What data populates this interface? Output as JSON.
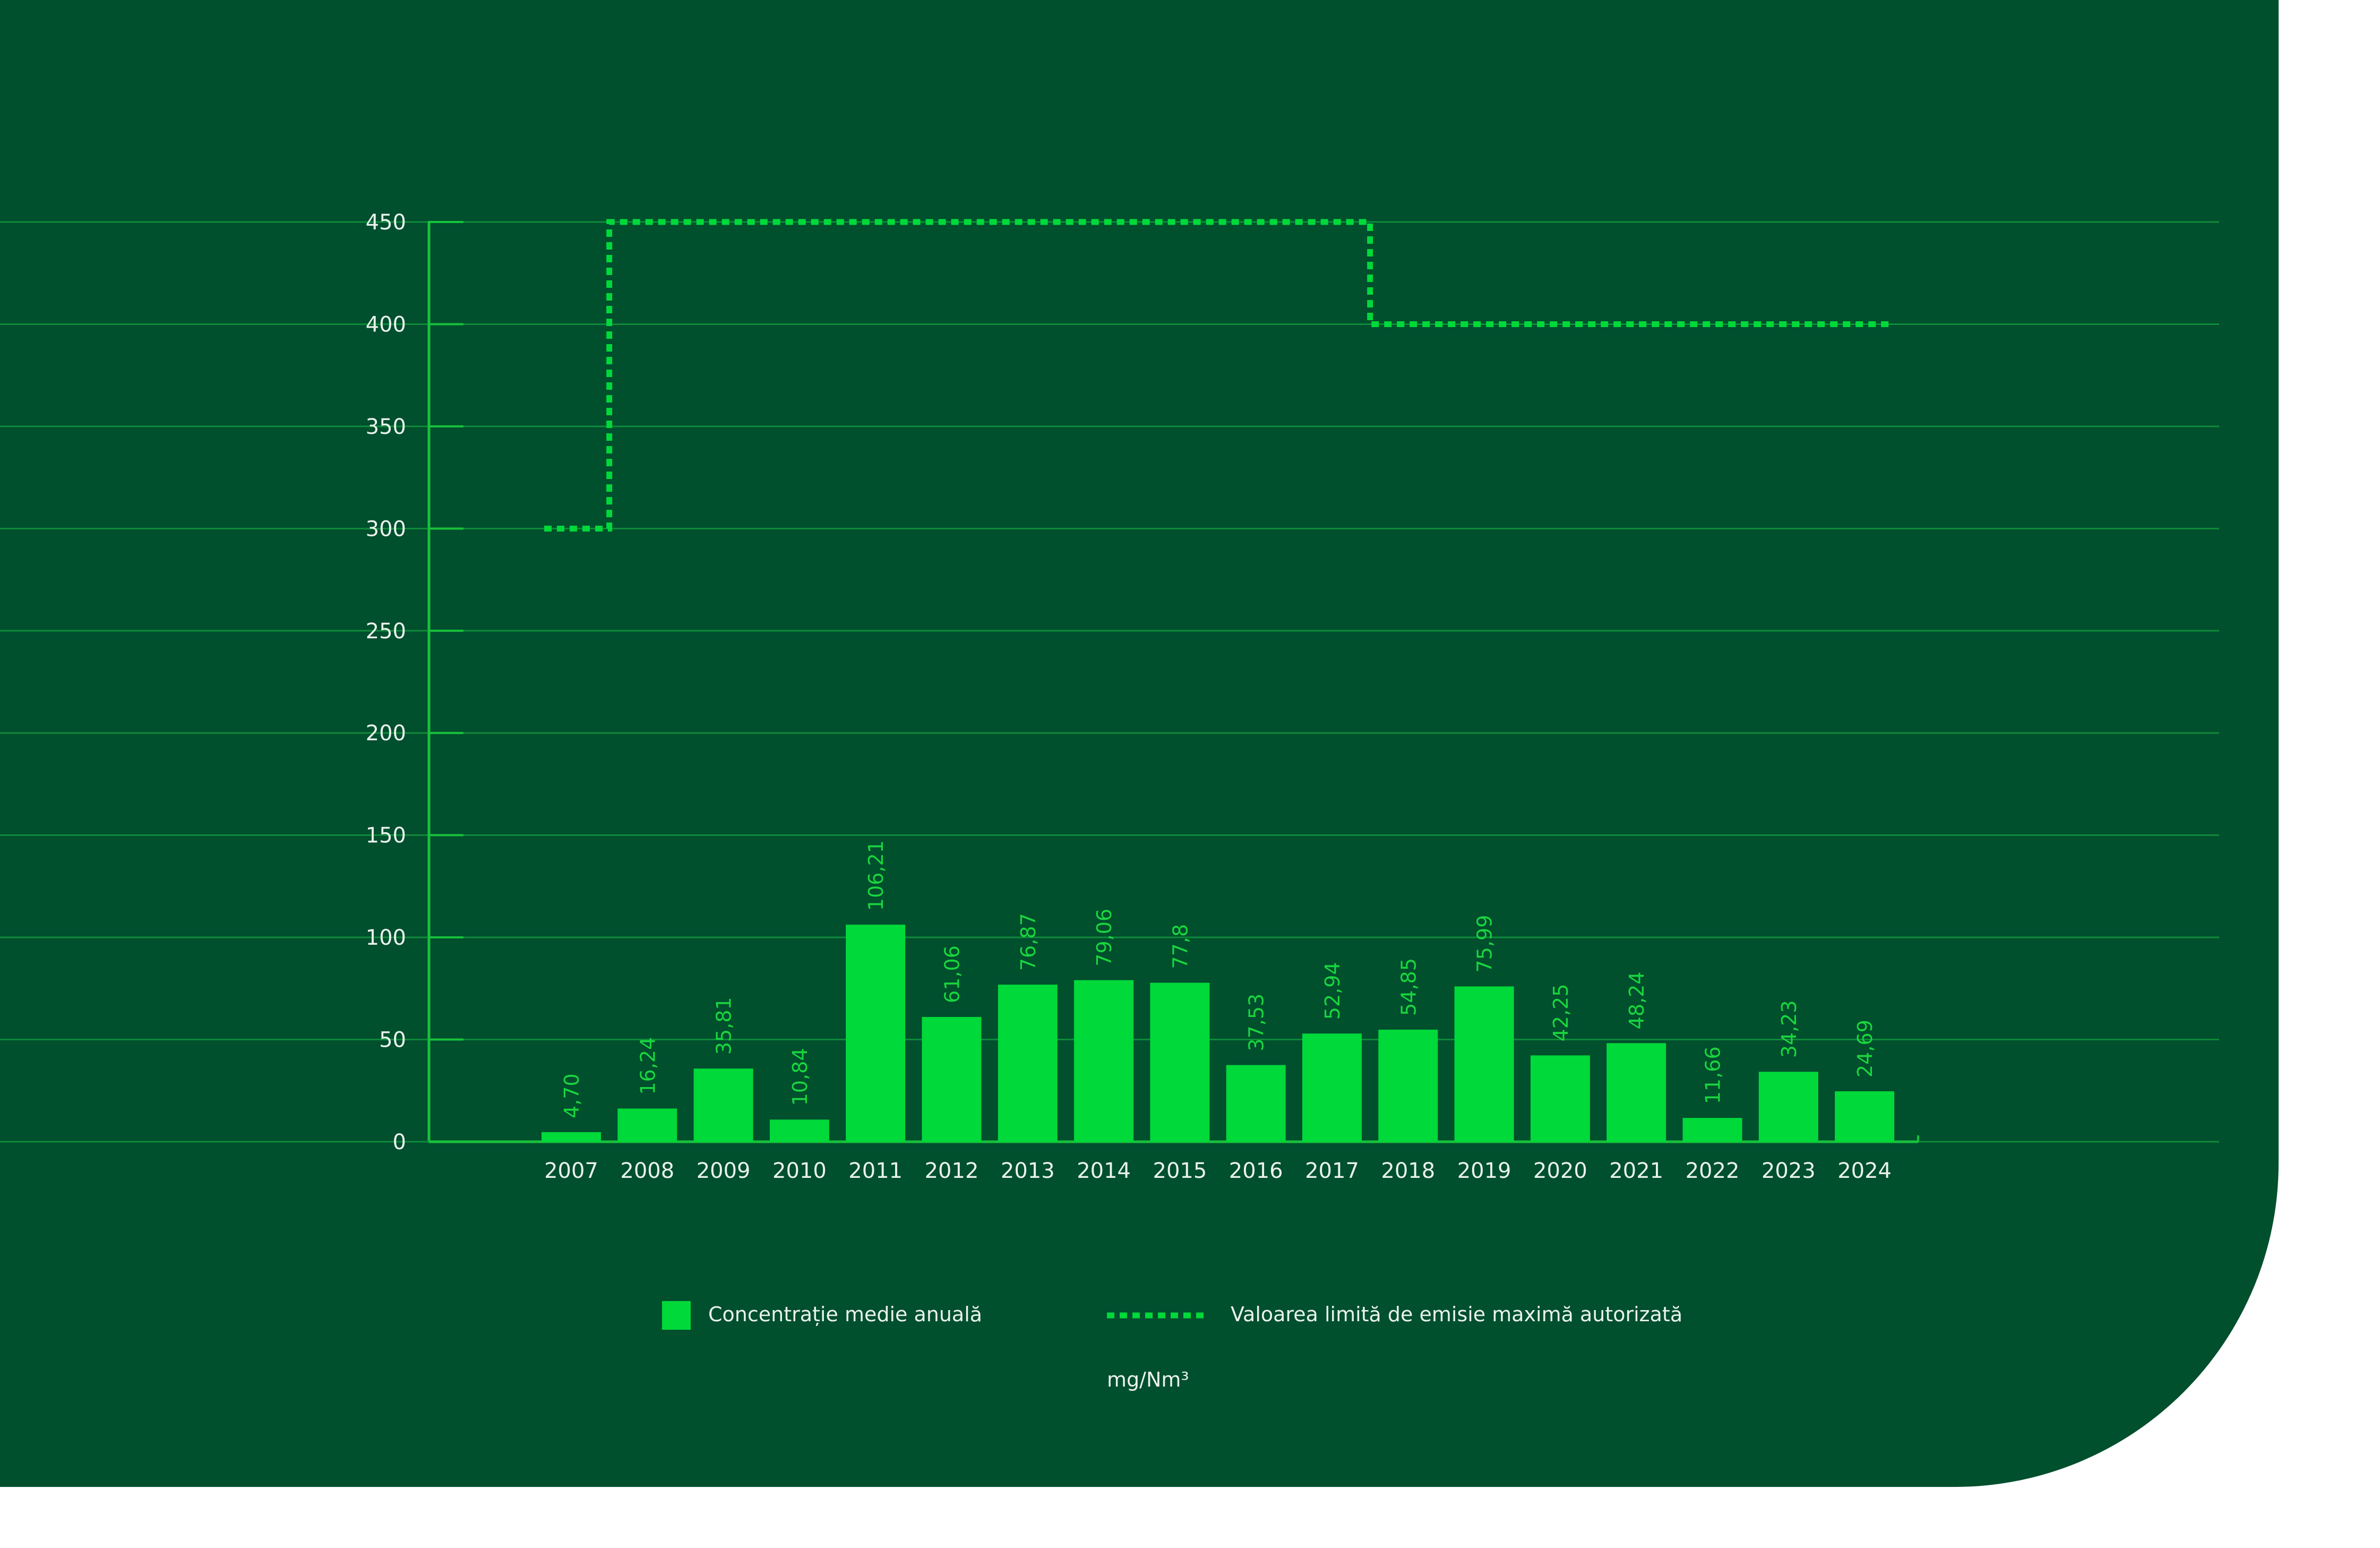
{
  "chart_data": {
    "type": "bar",
    "title": "",
    "xlabel": "",
    "ylabel": "",
    "ylim": [
      0,
      450
    ],
    "yticks": [
      0,
      50,
      100,
      150,
      200,
      250,
      300,
      350,
      400,
      450
    ],
    "grid": true,
    "legend_position": "bottom",
    "categories": [
      "2007",
      "2008",
      "2009",
      "2010",
      "2011",
      "2012",
      "2013",
      "2014",
      "2015",
      "2016",
      "2017",
      "2018",
      "2019",
      "2020",
      "2021",
      "2022",
      "2023",
      "2024"
    ],
    "series": [
      {
        "name": "Concentrație medie anuală",
        "kind": "bar",
        "values": [
          4.7,
          16.24,
          35.81,
          10.84,
          106.21,
          61.06,
          76.87,
          79.06,
          77.8,
          37.53,
          52.94,
          54.85,
          75.99,
          42.25,
          48.24,
          11.66,
          34.23,
          24.69
        ],
        "labels": [
          "4,70",
          "16,24",
          "35,81",
          "10,84",
          "106,21",
          "61,06",
          "76,87",
          "79,06",
          "77,8",
          "37,53",
          "52,94",
          "54,85",
          "75,99",
          "42,25",
          "48,24",
          "11,66",
          "34,23",
          "24,69"
        ]
      },
      {
        "name": "Valoarea limită de emisie maximă autorizată",
        "kind": "step-line-dotted",
        "values": [
          300,
          450,
          450,
          450,
          450,
          450,
          450,
          450,
          450,
          450,
          450,
          400,
          400,
          400,
          400,
          400,
          400,
          400
        ]
      }
    ],
    "unit_note": "mg/Nm³",
    "colors": {
      "background": "#004f2d",
      "bar": "#00d93a",
      "limit_line": "#00d93a",
      "grid": "#0f8a3a",
      "axis": "#18c23a",
      "tick_text": "#e9f3ec",
      "value_label": "#19d63f",
      "page": "#ffffff"
    }
  }
}
